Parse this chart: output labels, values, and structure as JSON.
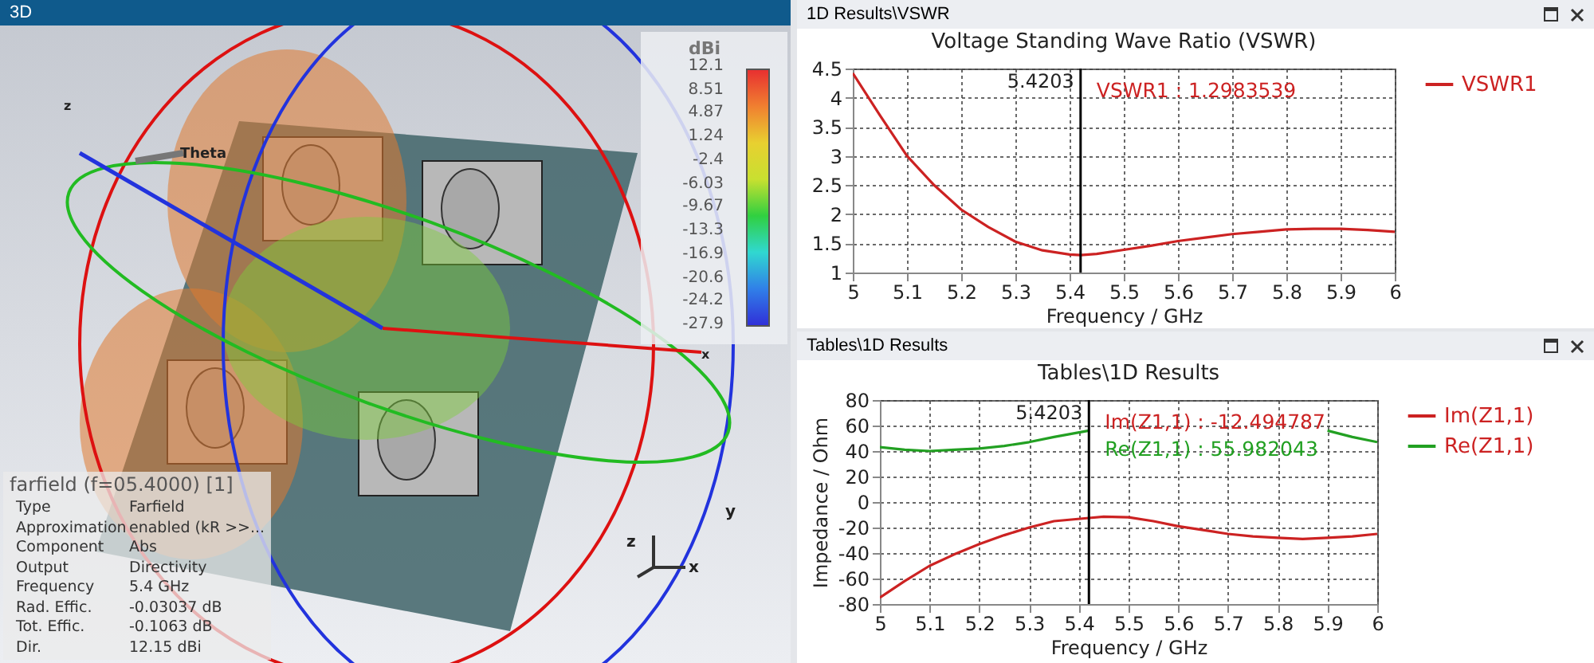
{
  "chart_data": [
    {
      "type": "other",
      "title": "3D",
      "clabel": "dBi",
      "annotations": [
        "farfield (f=05.4000) [1]",
        "Type",
        "Farfield",
        "Approximation",
        "enabled (kR >>...",
        "Component",
        "Abs",
        "Output",
        "Directivity",
        "Frequency",
        "5.4 GHz",
        "Rad. Effic.",
        "-0.03037 dB",
        "Tot. Effic.",
        "-0.1063 dB",
        "Dir.",
        "12.15 dBi",
        "Theta",
        "z",
        "x",
        "z",
        "y",
        "x",
        "12.1",
        "8.51",
        "4.87",
        "1.24",
        "-2.4",
        "-6.03",
        "-9.67",
        "-13.3",
        "-16.9",
        "-20.6",
        "-24.2",
        "-27.9"
      ]
    },
    {
      "type": "line",
      "title": "Voltage Standing Wave Ratio (VSWR)",
      "xlabel": "Frequency / GHz",
      "x": [
        5.0,
        5.05,
        5.1,
        5.15,
        5.2,
        5.25,
        5.3,
        5.35,
        5.4,
        5.4203,
        5.45,
        5.5,
        5.55,
        5.6,
        5.65,
        5.7,
        5.75,
        5.8,
        5.85,
        5.9,
        5.95,
        6.0
      ],
      "series": [
        {
          "name": "VSWR1",
          "color": "#cc2222",
          "values": [
            4.42,
            3.7,
            3.0,
            2.5,
            2.08,
            1.78,
            1.53,
            1.38,
            1.31,
            1.2983539,
            1.32,
            1.39,
            1.46,
            1.54,
            1.6,
            1.66,
            1.7,
            1.74,
            1.75,
            1.75,
            1.73,
            1.7
          ]
        }
      ],
      "xlim": [
        5,
        6
      ],
      "xticks": [
        5,
        5.1,
        5.2,
        5.3,
        5.4,
        5.5,
        5.6,
        5.7,
        5.8,
        5.9,
        6
      ],
      "ylim": [
        1,
        4.5
      ],
      "yticks": [
        1,
        1.5,
        2,
        2.5,
        3,
        3.5,
        4,
        4.5
      ],
      "ref_lines": [
        {
          "axis": "x",
          "value": 5.4203,
          "label": "5.4203"
        }
      ],
      "annotations": [
        "1D Results\\VSWR",
        "VSWR1 : 1.2983539"
      ],
      "grid": true,
      "legend": "top right",
      "line_style": "solid"
    },
    {
      "type": "line",
      "title": "Tables\\1D Results",
      "xlabel": "Frequency / GHz",
      "ylabel": "Impedance / Ohm",
      "x": [
        5.0,
        5.05,
        5.1,
        5.15,
        5.2,
        5.25,
        5.3,
        5.35,
        5.4203,
        5.45,
        5.5,
        5.55,
        5.6,
        5.65,
        5.7,
        5.75,
        5.8,
        5.85,
        5.9,
        5.95,
        6.0
      ],
      "series": [
        {
          "name": "Im(Z1,1)",
          "color": "#cc2222",
          "values": [
            -75,
            -62,
            -50,
            -41,
            -33,
            -26,
            -20,
            -15,
            -12.494787,
            -11.5,
            -12,
            -15,
            -19,
            -22,
            -25,
            -27,
            -28,
            -29,
            -28,
            -27,
            -25
          ]
        },
        {
          "name": "Re(Z1,1)",
          "color": "#22a022",
          "values": [
            43,
            41,
            40,
            41,
            42,
            44,
            47,
            51,
            55.982043,
            null,
            null,
            null,
            null,
            null,
            null,
            null,
            null,
            null,
            56,
            51,
            47
          ]
        }
      ],
      "xlim": [
        5,
        6
      ],
      "xticks": [
        5,
        5.1,
        5.2,
        5.3,
        5.4,
        5.5,
        5.6,
        5.7,
        5.8,
        5.9,
        6
      ],
      "ylim": [
        -80,
        80
      ],
      "yticks": [
        -80,
        -60,
        -40,
        -20,
        0,
        20,
        40,
        60,
        80
      ],
      "ref_lines": [
        {
          "axis": "x",
          "value": 5.4203,
          "label": "5.4203"
        }
      ],
      "annotations": [
        "Tables\\1D Results",
        "Im(Z1,1) : -12.494787",
        "Re(Z1,1) : 55.982043"
      ],
      "grid": true,
      "legend": "top right",
      "line_style": "solid"
    }
  ]
}
